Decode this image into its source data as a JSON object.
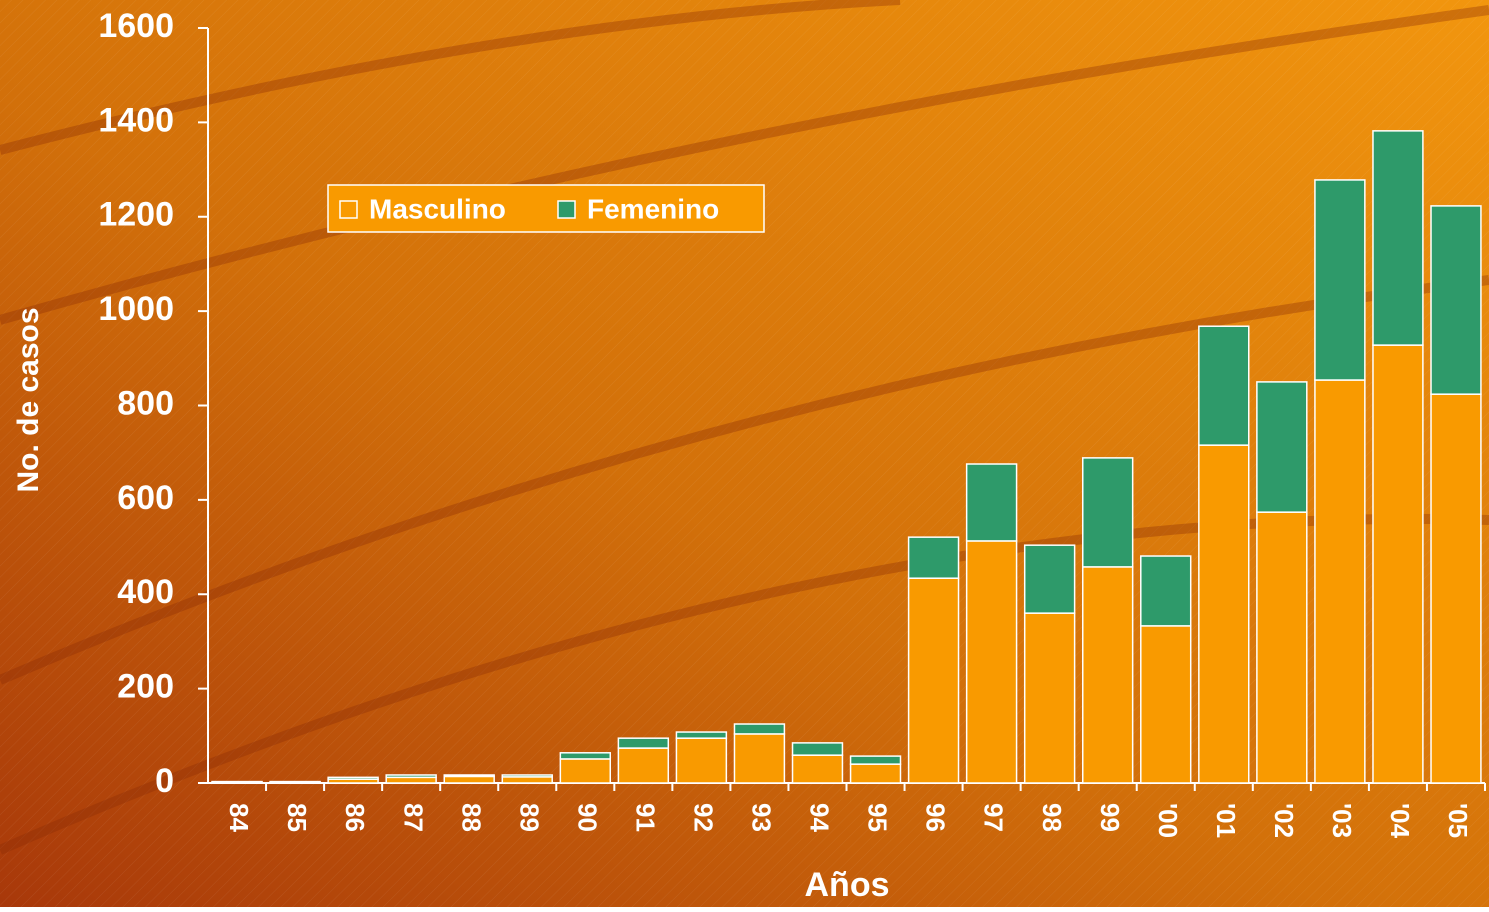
{
  "chart_data": {
    "type": "stacked_bar",
    "x_label": "Años",
    "y_label": "No. de casos",
    "categories": [
      "84",
      "85",
      "86",
      "87",
      "88",
      "89",
      "90",
      "91",
      "92",
      "93",
      "94",
      "95",
      "96",
      "97",
      "98",
      "99",
      "'00",
      "'01",
      "'02",
      "'03",
      "'04",
      "'05"
    ],
    "series": [
      {
        "name": "Masculino",
        "color": "#f99a00",
        "values": [
          2,
          2,
          8,
          12,
          14,
          13,
          51,
          74,
          95,
          104,
          59,
          40,
          434,
          513,
          360,
          458,
          333,
          716,
          574,
          854,
          928,
          824
        ]
      },
      {
        "name": "Femenino",
        "color": "#2e9a6a",
        "values": [
          1,
          1,
          4,
          5,
          3,
          4,
          13,
          21,
          13,
          21,
          26,
          17,
          87,
          163,
          144,
          231,
          148,
          252,
          276,
          424,
          454,
          399
        ]
      }
    ],
    "ylim": [
      0,
      1600
    ],
    "yticks": [
      0,
      200,
      400,
      600,
      800,
      1000,
      1200,
      1400,
      1600
    ],
    "grid": false,
    "legend": "upper-left"
  }
}
